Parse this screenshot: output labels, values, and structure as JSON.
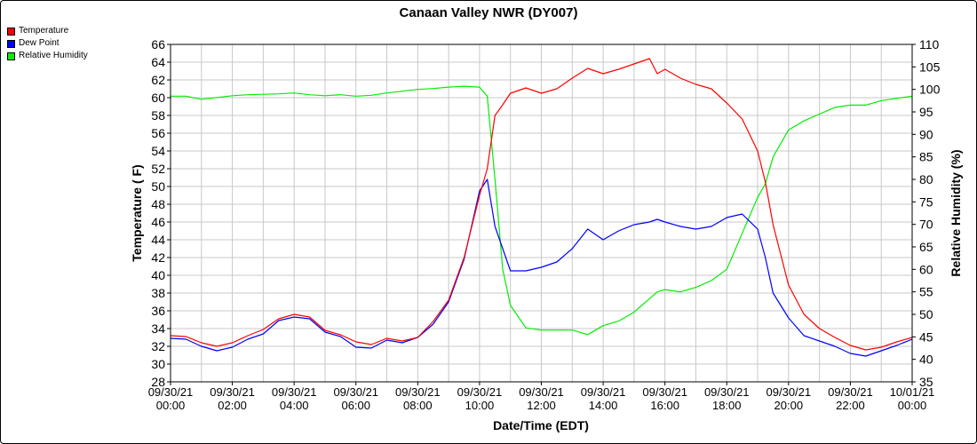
{
  "chart_data": {
    "type": "line",
    "title": "Canaan Valley NWR (DY007)",
    "xlabel": "Date/Time (EDT)",
    "ylabel": "Temperature ( F)",
    "y2label": "Relative Humidity (%)",
    "xlim": [
      0,
      24
    ],
    "ylim": [
      28,
      66
    ],
    "y2lim": [
      35,
      110
    ],
    "x_ticks": [
      {
        "h": 0,
        "date": "09/30/21",
        "time": "00:00"
      },
      {
        "h": 2,
        "date": "09/30/21",
        "time": "02:00"
      },
      {
        "h": 4,
        "date": "09/30/21",
        "time": "04:00"
      },
      {
        "h": 6,
        "date": "09/30/21",
        "time": "06:00"
      },
      {
        "h": 8,
        "date": "09/30/21",
        "time": "08:00"
      },
      {
        "h": 10,
        "date": "09/30/21",
        "time": "10:00"
      },
      {
        "h": 12,
        "date": "09/30/21",
        "time": "12:00"
      },
      {
        "h": 14,
        "date": "09/30/21",
        "time": "14:00"
      },
      {
        "h": 16,
        "date": "09/30/21",
        "time": "16:00"
      },
      {
        "h": 18,
        "date": "09/30/21",
        "time": "18:00"
      },
      {
        "h": 20,
        "date": "09/30/21",
        "time": "20:00"
      },
      {
        "h": 22,
        "date": "09/30/21",
        "time": "22:00"
      },
      {
        "h": 24,
        "date": "10/01/21",
        "time": "00:00"
      }
    ],
    "y_ticks": [
      28,
      30,
      32,
      34,
      36,
      38,
      40,
      42,
      44,
      46,
      48,
      50,
      52,
      54,
      56,
      58,
      60,
      62,
      64,
      66
    ],
    "y2_ticks": [
      35,
      40,
      45,
      50,
      55,
      60,
      65,
      70,
      75,
      80,
      85,
      90,
      95,
      100,
      105,
      110
    ],
    "grid": true,
    "legend_position": "top-left",
    "series": [
      {
        "name": "Temperature",
        "color": "#ff0000",
        "axis": "left",
        "x": [
          0,
          0.5,
          1,
          1.5,
          2,
          2.5,
          3,
          3.5,
          4,
          4.5,
          5,
          5.5,
          6,
          6.5,
          7,
          7.5,
          8,
          8.5,
          9,
          9.5,
          10,
          10.25,
          10.5,
          10.75,
          11,
          11.5,
          12,
          12.5,
          13,
          13.5,
          14,
          14.5,
          15,
          15.5,
          15.75,
          16,
          16.5,
          17,
          17.5,
          18,
          18.5,
          19,
          19.25,
          19.5,
          20,
          20.5,
          21,
          21.5,
          22,
          22.5,
          23,
          23.5,
          24
        ],
        "values": [
          33.2,
          33.1,
          32.4,
          32.0,
          32.4,
          33.2,
          33.9,
          35.1,
          35.6,
          35.3,
          33.8,
          33.3,
          32.5,
          32.2,
          32.9,
          32.6,
          33.0,
          34.8,
          37.2,
          42.0,
          49.0,
          52.0,
          58.0,
          59.2,
          60.5,
          61.1,
          60.5,
          61.0,
          62.2,
          63.3,
          62.7,
          63.2,
          63.8,
          64.4,
          62.7,
          63.2,
          62.2,
          61.5,
          61.0,
          59.4,
          57.6,
          54.0,
          50.5,
          45.7,
          38.9,
          35.6,
          34.0,
          33.0,
          32.1,
          31.6,
          31.9,
          32.5,
          33.0
        ]
      },
      {
        "name": "Dew Point",
        "color": "#0000ff",
        "axis": "left",
        "x": [
          0,
          0.5,
          1,
          1.5,
          2,
          2.5,
          3,
          3.5,
          4,
          4.5,
          5,
          5.5,
          6,
          6.5,
          7,
          7.5,
          8,
          8.5,
          9,
          9.5,
          10,
          10.25,
          10.5,
          10.75,
          11,
          11.5,
          12,
          12.5,
          13,
          13.5,
          14,
          14.5,
          15,
          15.5,
          15.75,
          16,
          16.5,
          17,
          17.5,
          18,
          18.5,
          19,
          19.25,
          19.5,
          20,
          20.5,
          21,
          21.5,
          22,
          22.5,
          23,
          23.5,
          24
        ],
        "values": [
          32.9,
          32.8,
          32.0,
          31.5,
          31.9,
          32.8,
          33.4,
          34.9,
          35.3,
          35.1,
          33.6,
          33.1,
          31.9,
          31.8,
          32.7,
          32.4,
          33.0,
          34.5,
          37.0,
          41.8,
          49.5,
          50.8,
          45.5,
          43.0,
          40.5,
          40.5,
          40.9,
          41.5,
          43.0,
          45.2,
          44.0,
          45.0,
          45.7,
          46.0,
          46.3,
          46.0,
          45.5,
          45.2,
          45.5,
          46.5,
          46.9,
          45.2,
          42.0,
          38.0,
          35.2,
          33.2,
          32.6,
          32.0,
          31.2,
          30.9,
          31.5,
          32.1,
          32.8
        ]
      },
      {
        "name": "Relative Humidity",
        "color": "#00ee00",
        "axis": "right",
        "x": [
          0,
          0.5,
          1,
          1.5,
          2,
          2.5,
          3,
          3.5,
          4,
          4.5,
          5,
          5.5,
          6,
          6.5,
          7,
          7.5,
          8,
          8.5,
          9,
          9.5,
          10,
          10.25,
          10.5,
          10.75,
          11,
          11.5,
          12,
          12.5,
          13,
          13.5,
          14,
          14.5,
          15,
          15.5,
          15.75,
          16,
          16.5,
          17,
          17.5,
          18,
          18.5,
          19,
          19.25,
          19.5,
          20,
          20.5,
          21,
          21.5,
          22,
          22.5,
          23,
          23.5,
          24
        ],
        "values": [
          98.5,
          98.5,
          97.8,
          98.2,
          98.6,
          98.8,
          98.9,
          99.0,
          99.2,
          98.8,
          98.6,
          98.8,
          98.5,
          98.7,
          99.2,
          99.6,
          100.0,
          100.2,
          100.5,
          100.7,
          100.5,
          98.5,
          80.0,
          60.0,
          52.0,
          47.0,
          46.5,
          46.5,
          46.5,
          45.5,
          47.5,
          48.5,
          50.5,
          53.5,
          55.0,
          55.5,
          55.0,
          56.0,
          57.5,
          60.0,
          68.0,
          76.0,
          79.0,
          85.0,
          91.0,
          93.0,
          94.5,
          96.0,
          96.5,
          96.5,
          97.5,
          98.0,
          98.5
        ]
      }
    ]
  }
}
